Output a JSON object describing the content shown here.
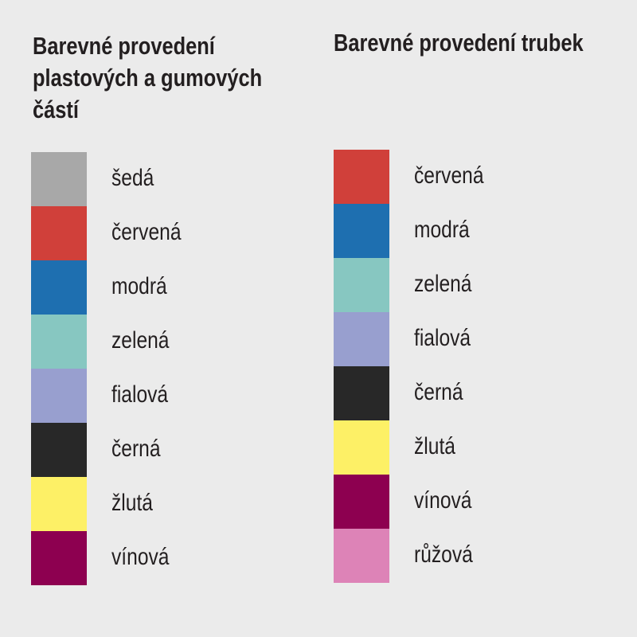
{
  "left": {
    "title_lines": [
      "Barevné provedení",
      "plastových a gumových",
      "částí"
    ],
    "items": [
      {
        "label": "šedá",
        "color": "#a8a8a8"
      },
      {
        "label": "červená",
        "color": "#d0403a"
      },
      {
        "label": "modrá",
        "color": "#1e6fb0"
      },
      {
        "label": "zelená",
        "color": "#87c7c1"
      },
      {
        "label": "fialová",
        "color": "#989fcf"
      },
      {
        "label": "černá",
        "color": "#282828"
      },
      {
        "label": "žlutá",
        "color": "#fdf066"
      },
      {
        "label": "vínová",
        "color": "#8d0050"
      }
    ]
  },
  "right": {
    "title_lines": [
      "Barevné provedení trubek"
    ],
    "items": [
      {
        "label": "červená",
        "color": "#d0403a"
      },
      {
        "label": "modrá",
        "color": "#1e6fb0"
      },
      {
        "label": "zelená",
        "color": "#87c7c1"
      },
      {
        "label": "fialová",
        "color": "#989fcf"
      },
      {
        "label": "černá",
        "color": "#282828"
      },
      {
        "label": "žlutá",
        "color": "#fdf066"
      },
      {
        "label": "vínová",
        "color": "#8d0050"
      },
      {
        "label": "růžová",
        "color": "#dd83b7"
      }
    ]
  }
}
